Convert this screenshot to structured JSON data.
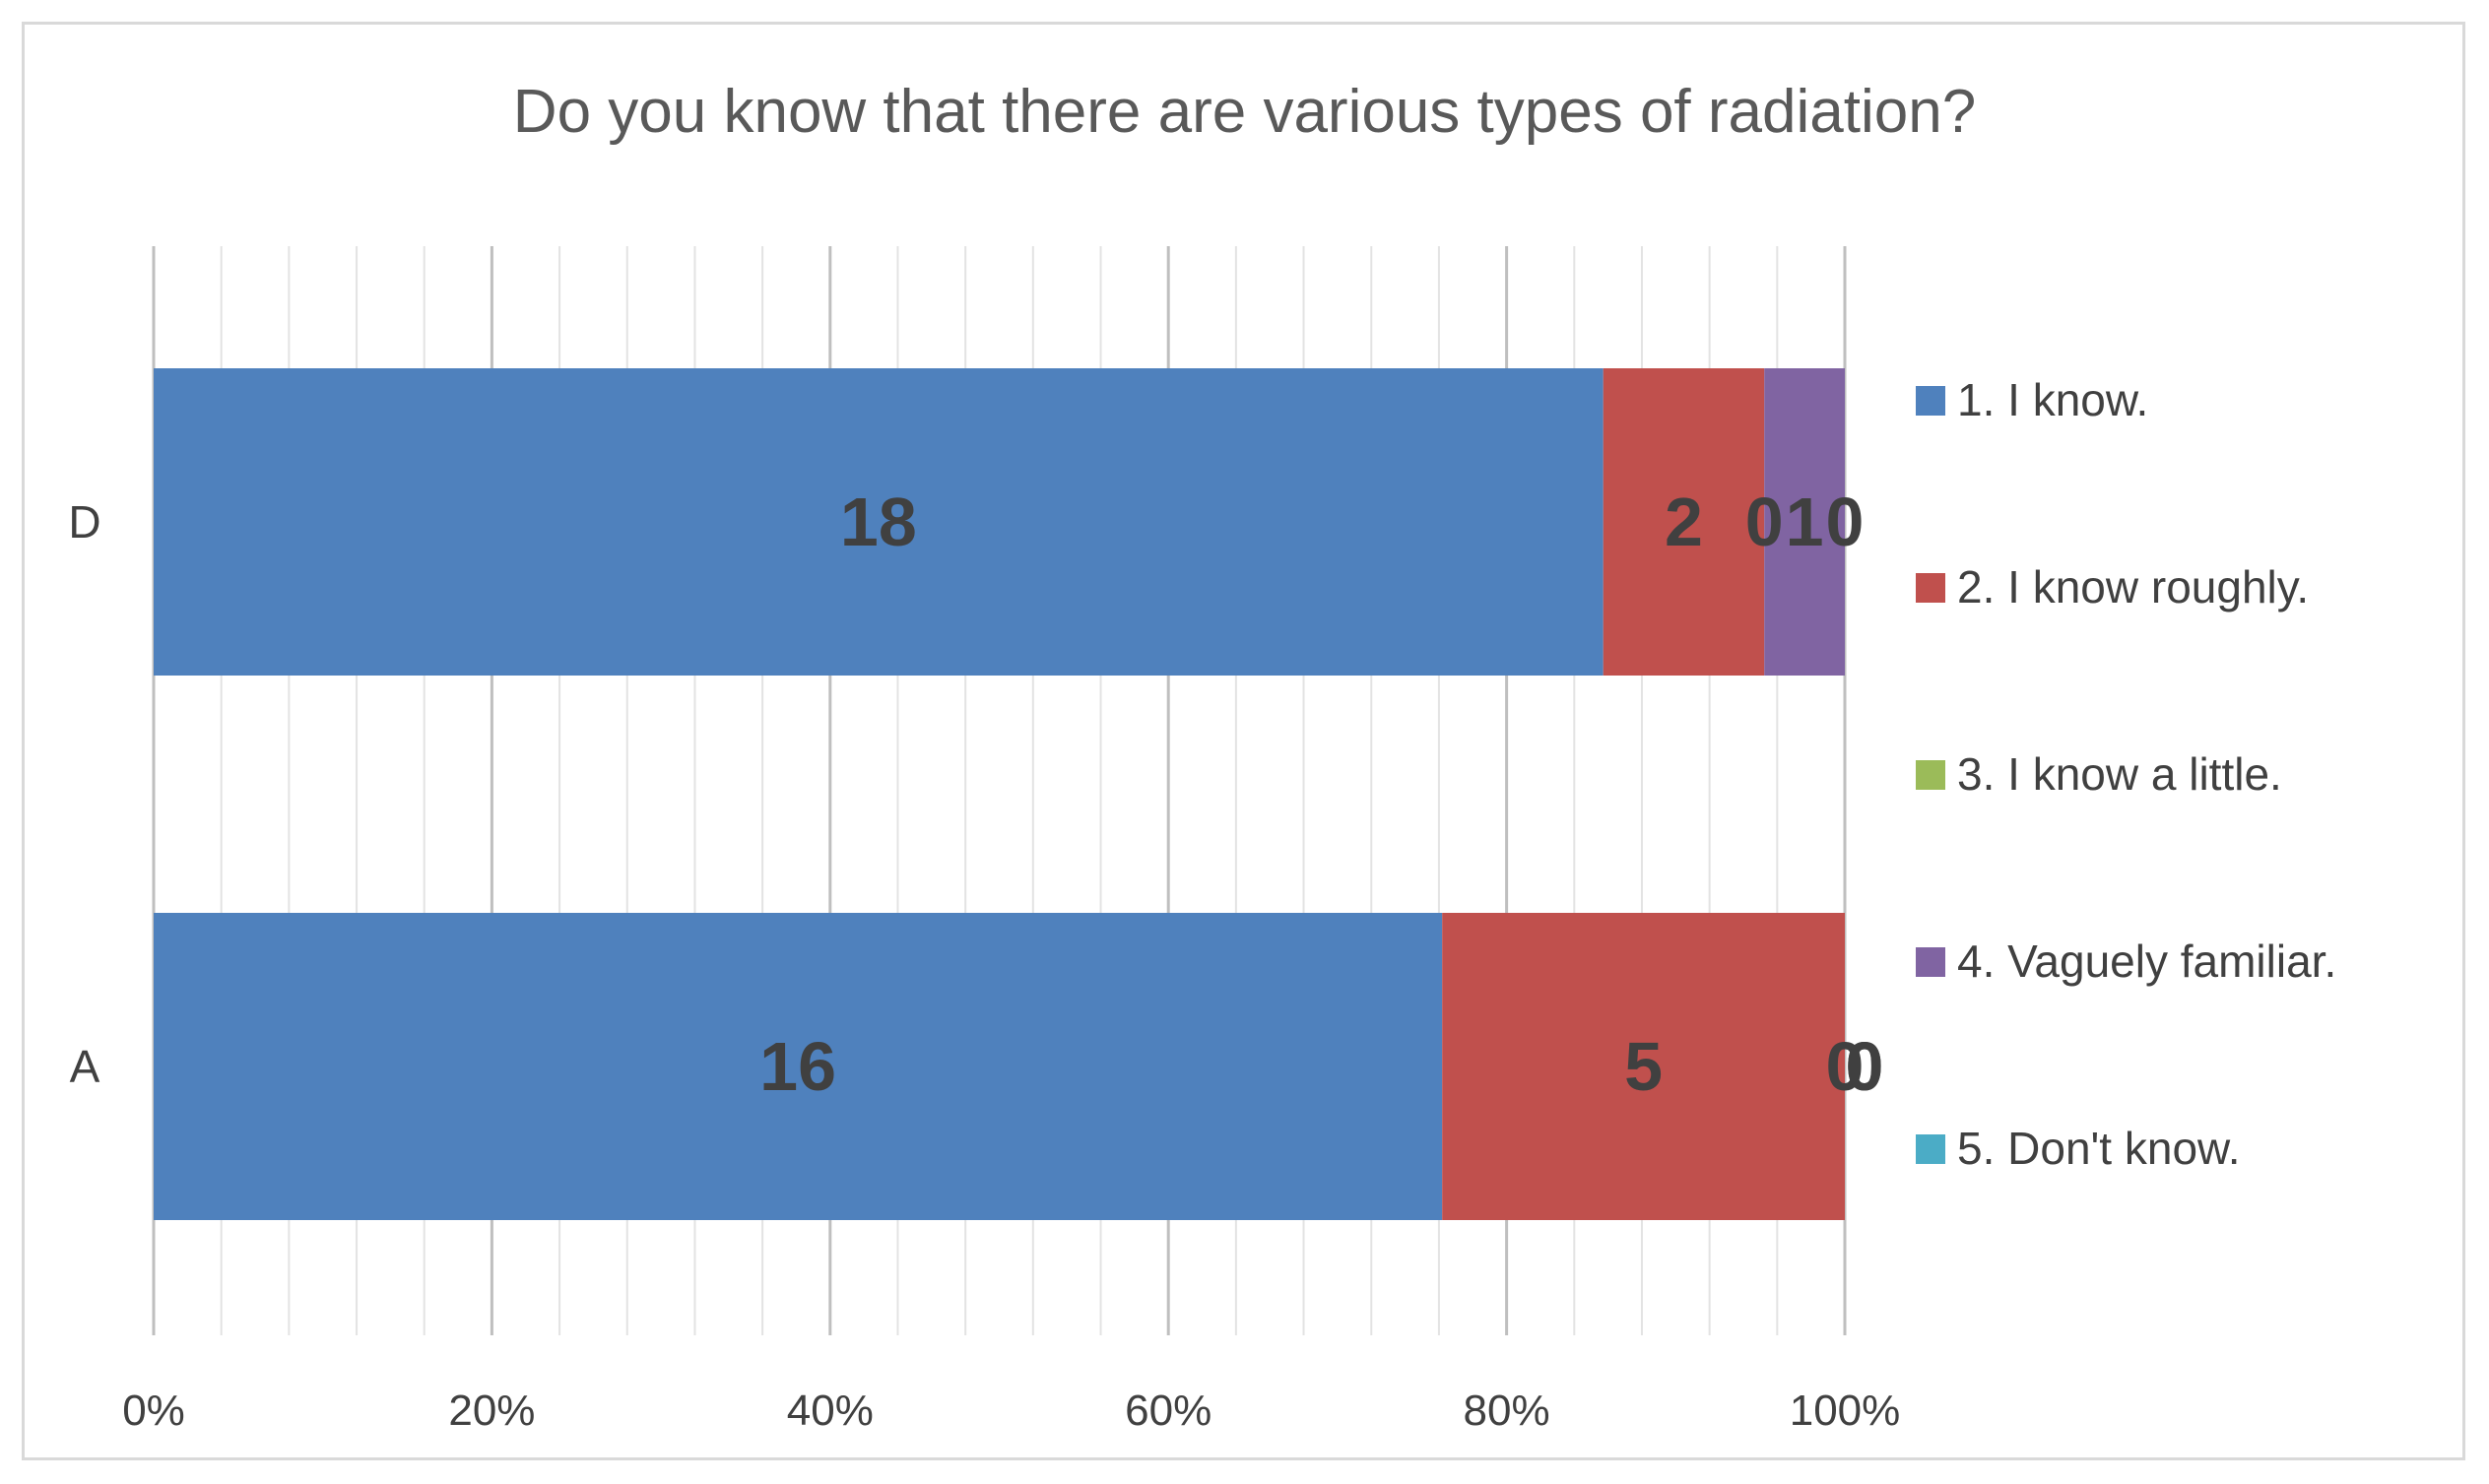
{
  "chart_data": {
    "type": "bar",
    "orientation": "horizontal",
    "stacked": "percent",
    "title": "Do you know that there are various types of radiation?",
    "categories": [
      "D",
      "A"
    ],
    "series": [
      {
        "name": "1. I know.",
        "color": "#4f81bd",
        "values": [
          18,
          16
        ],
        "labels": [
          "18",
          "16"
        ]
      },
      {
        "name": "2. I know roughly.",
        "color": "#c0504d",
        "values": [
          2,
          5
        ],
        "labels": [
          "2",
          "5"
        ]
      },
      {
        "name": "3. I know a little.",
        "color": "#9bbb59",
        "values": [
          0,
          0
        ],
        "labels": [
          "0",
          "0"
        ]
      },
      {
        "name": "4. Vaguely familiar.",
        "color": "#8064a2",
        "values": [
          1,
          0
        ],
        "labels": [
          "1",
          "0"
        ]
      },
      {
        "name": "5. Don't know.",
        "color": "#4bacc6",
        "values": [
          0,
          0
        ],
        "labels": [
          "0",
          "0"
        ]
      }
    ],
    "x_ticks": [
      "0%",
      "20%",
      "40%",
      "60%",
      "80%",
      "100%"
    ],
    "xlim": [
      0,
      100
    ],
    "grid": true,
    "legend_position": "right"
  }
}
